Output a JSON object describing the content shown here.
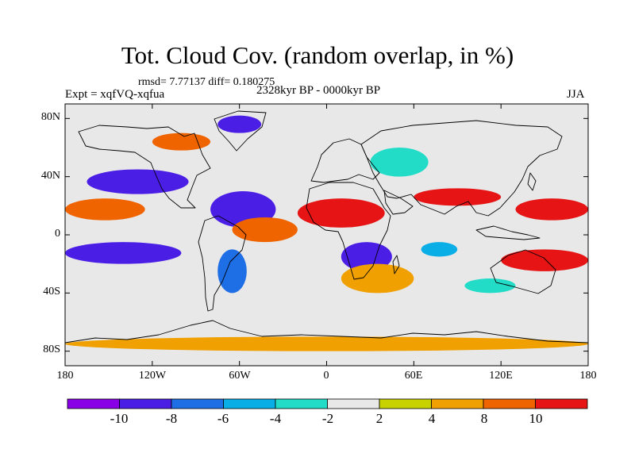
{
  "title": "Tot. Cloud Cov. (random overlap, in %)",
  "stats_line": "rmsd= 7.77137 diff= 0.180275",
  "experiment_label": "Expt = xqfVQ-xqfua",
  "period_label": "2328kyr BP - 0000kyr BP",
  "season_label": "JJA",
  "lat_ticks": [
    "80N",
    "40N",
    "0",
    "40S",
    "80S"
  ],
  "lat_tick_values": [
    80,
    40,
    0,
    -40,
    -80
  ],
  "lon_ticks": [
    "180",
    "120W",
    "60W",
    "0",
    "60E",
    "120E",
    "180"
  ],
  "lon_tick_values": [
    -180,
    -120,
    -60,
    0,
    60,
    120,
    180
  ],
  "colorbar": {
    "tick_labels": [
      "-10",
      "-8",
      "-6",
      "-4",
      "-2",
      "2",
      "4",
      "8",
      "10"
    ],
    "colors": [
      "#8a00e6",
      "#4b1ee6",
      "#1e6ee6",
      "#0aaee6",
      "#23dcc8",
      "#e8e8e8",
      "#c8d200",
      "#f0a000",
      "#f06400",
      "#e61414"
    ]
  },
  "map_data": {
    "projection": "cylindrical-equidistant",
    "lon_range": [
      -180,
      180
    ],
    "lat_range": [
      -90,
      90
    ],
    "variable": "total cloud cover anomaly (%)",
    "anomaly_regions": [
      {
        "lon": [
          -165,
          -95
        ],
        "lat": [
          28,
          45
        ],
        "value": -10
      },
      {
        "lon": [
          -80,
          -35
        ],
        "lat": [
          5,
          30
        ],
        "value": -10
      },
      {
        "lon": [
          -180,
          -100
        ],
        "lat": [
          -20,
          -5
        ],
        "value": -10
      },
      {
        "lon": [
          -75,
          -55
        ],
        "lat": [
          -40,
          -10
        ],
        "value": -8
      },
      {
        "lon": [
          -75,
          -45
        ],
        "lat": [
          70,
          82
        ],
        "value": -10
      },
      {
        "lon": [
          10,
          45
        ],
        "lat": [
          -25,
          -5
        ],
        "value": -10
      },
      {
        "lon": [
          30,
          70
        ],
        "lat": [
          40,
          60
        ],
        "value": -4
      },
      {
        "lon": [
          65,
          90
        ],
        "lat": [
          -15,
          -5
        ],
        "value": -6
      },
      {
        "lon": [
          95,
          130
        ],
        "lat": [
          -40,
          -30
        ],
        "value": -4
      },
      {
        "lon": [
          -20,
          40
        ],
        "lat": [
          5,
          25
        ],
        "value": 10
      },
      {
        "lon": [
          60,
          120
        ],
        "lat": [
          20,
          32
        ],
        "value": 10
      },
      {
        "lon": [
          130,
          180
        ],
        "lat": [
          10,
          25
        ],
        "value": 10
      },
      {
        "lon": [
          -180,
          -125
        ],
        "lat": [
          10,
          25
        ],
        "value": 8
      },
      {
        "lon": [
          120,
          180
        ],
        "lat": [
          -25,
          -10
        ],
        "value": 10
      },
      {
        "lon": [
          -65,
          -20
        ],
        "lat": [
          -5,
          12
        ],
        "value": 8
      },
      {
        "lon": [
          -120,
          -80
        ],
        "lat": [
          58,
          70
        ],
        "value": 8
      },
      {
        "lon": [
          -180,
          180
        ],
        "lat": [
          -80,
          -70
        ],
        "value": 4
      },
      {
        "lon": [
          10,
          60
        ],
        "lat": [
          -40,
          -20
        ],
        "value": 4
      }
    ]
  }
}
